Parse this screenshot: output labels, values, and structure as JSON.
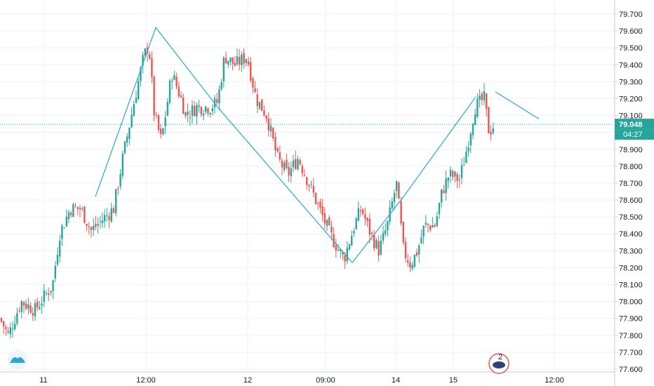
{
  "chart_data": {
    "type": "candlestick",
    "title": "",
    "xlabel": "",
    "ylabel": "",
    "ylim": [
      77.6,
      79.75
    ],
    "y_ticks": [
      "79.700",
      "79.600",
      "79.500",
      "79.400",
      "79.300",
      "79.200",
      "79.100",
      "79.000",
      "78.900",
      "78.800",
      "78.700",
      "78.600",
      "78.500",
      "78.400",
      "78.300",
      "78.200",
      "78.100",
      "78.000",
      "77.900",
      "77.800",
      "77.700",
      "77.600"
    ],
    "x_ticks": [
      "11",
      "12:00",
      "12",
      "09:00",
      "14",
      "15",
      "12:00"
    ],
    "grid": true,
    "current_price": {
      "value": 79.048,
      "label": "79.048",
      "countdown": "04:27"
    },
    "colors": {
      "up": "#26a69a",
      "down": "#ef5350",
      "drawing": "#2aa6d4",
      "price_line": "#26a69a",
      "grid": "#eef1f5",
      "axis_text": "#131722"
    },
    "drawing_polyline": [
      [
        79.05,
        78.62
      ],
      [
        79.6,
        79.62
      ],
      [
        79.11,
        79.15
      ],
      [
        78.42,
        78.23
      ],
      [
        78.72,
        78.62
      ],
      [
        79.18,
        79.21
      ]
    ],
    "drawing_segment": [
      79.24,
      79.08
    ],
    "events_badge": "2",
    "candles": []
  }
}
